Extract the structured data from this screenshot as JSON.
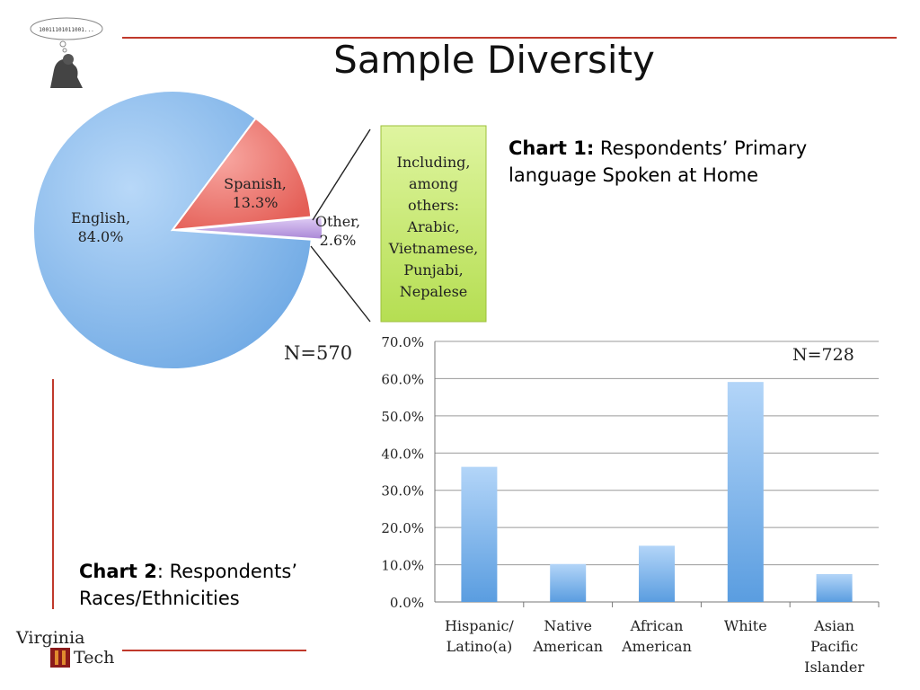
{
  "slide": {
    "title": "Sample Diversity",
    "thought_bubble_text": "10011101011001...",
    "logo_line1": "Virginia",
    "logo_line2": "Tech",
    "caption1_bold": "Chart 1:",
    "caption1_text": " Respondents’ Primary language Spoken at Home",
    "caption2_bold": "Chart 2",
    "caption2_text": ": Respondents’ Races/Ethnicities"
  },
  "colors": {
    "accent_line": "#c0392b",
    "pie_english": "#7fb5ea",
    "pie_spanish": "#ee6b64",
    "pie_other": "#c5a6e6",
    "callout_box": "#c9ea72",
    "bar": "#6aa9e6"
  },
  "chart_data": [
    {
      "type": "pie",
      "n_label": "N=570",
      "slices": [
        {
          "label": "English,",
          "value_label": "84.0%",
          "value": 84.0
        },
        {
          "label": "Spanish,",
          "value_label": "13.3%",
          "value": 13.3
        },
        {
          "label": "Other,",
          "value_label": "2.6%",
          "value": 2.6
        }
      ],
      "callout_lines": [
        "Including,",
        "among",
        "others:",
        "Arabic,",
        "Vietnamese,",
        "Punjabi,",
        "Nepalese"
      ]
    },
    {
      "type": "bar",
      "n_label": "N=728",
      "categories": [
        [
          "Hispanic/",
          "Latino(a)"
        ],
        [
          "Native",
          "American"
        ],
        [
          "African",
          "American"
        ],
        [
          "White"
        ],
        [
          "Asian",
          "Pacific",
          "Islander"
        ]
      ],
      "values": [
        36.3,
        10.2,
        15.1,
        59.1,
        7.5
      ],
      "ylim": [
        0,
        70
      ],
      "yticks": [
        "0.0%",
        "10.0%",
        "20.0%",
        "30.0%",
        "40.0%",
        "50.0%",
        "60.0%",
        "70.0%"
      ],
      "grid": true
    }
  ]
}
